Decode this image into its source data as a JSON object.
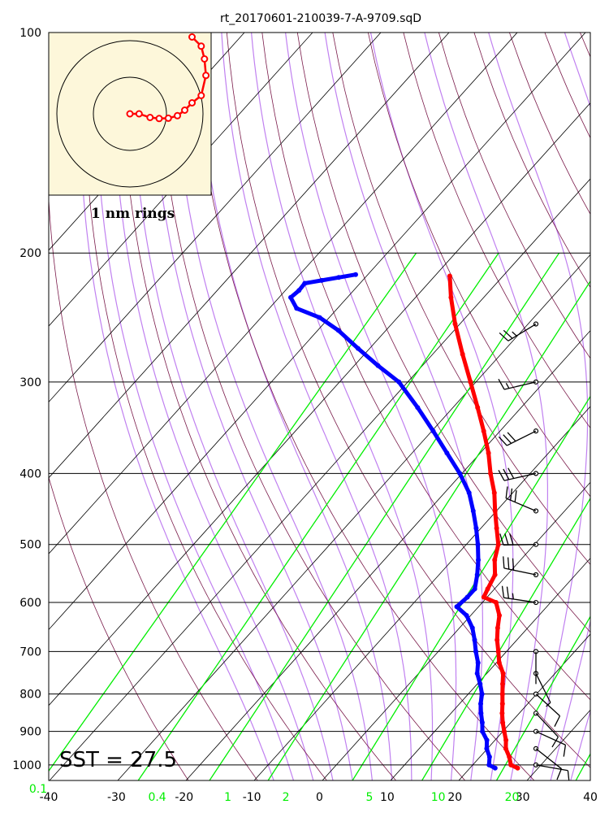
{
  "chart_data": {
    "type": "skew-t",
    "title": "rt_20170601-210039-7-A-9709.sqD",
    "pressure_ticks": [
      100,
      200,
      300,
      400,
      500,
      600,
      700,
      800,
      900,
      1000
    ],
    "temperature_ticks": [
      -40,
      -30,
      -20,
      -10,
      0,
      10,
      20,
      30,
      40
    ],
    "mixing_ratio_ticks": [
      "0.1",
      "0.4",
      "1",
      "2",
      "5",
      "10",
      "20"
    ],
    "mixing_ratio_values": [
      0.1,
      0.4,
      1,
      2,
      5,
      10,
      20
    ],
    "sst_label": "SST = 27.5",
    "hodograph_label": "1 nm rings",
    "colors": {
      "temperature": "#ff0000",
      "dewpoint": "#0000ff",
      "mixing_ratio": "#00ee00",
      "moist_adiabat": "#c080f0",
      "dry_adiabat": "#7a1a4a",
      "isotherm": "#000000",
      "hodograph_bg": "#fdf7da"
    },
    "temperature_profile": [
      {
        "p": 1010,
        "t": 27.0
      },
      {
        "p": 1000,
        "t": 25.6
      },
      {
        "p": 975,
        "t": 24.3
      },
      {
        "p": 950,
        "t": 22.7
      },
      {
        "p": 925,
        "t": 21.6
      },
      {
        "p": 900,
        "t": 20.2
      },
      {
        "p": 875,
        "t": 18.8
      },
      {
        "p": 850,
        "t": 17.5
      },
      {
        "p": 825,
        "t": 16.3
      },
      {
        "p": 800,
        "t": 15.0
      },
      {
        "p": 775,
        "t": 13.7
      },
      {
        "p": 750,
        "t": 12.4
      },
      {
        "p": 725,
        "t": 10.4
      },
      {
        "p": 700,
        "t": 8.8
      },
      {
        "p": 675,
        "t": 7.1
      },
      {
        "p": 650,
        "t": 5.6
      },
      {
        "p": 625,
        "t": 4.2
      },
      {
        "p": 600,
        "t": 2.0
      },
      {
        "p": 590,
        "t": -0.5
      },
      {
        "p": 575,
        "t": -1.0
      },
      {
        "p": 550,
        "t": -1.8
      },
      {
        "p": 525,
        "t": -3.8
      },
      {
        "p": 500,
        "t": -5.3
      },
      {
        "p": 475,
        "t": -7.7
      },
      {
        "p": 450,
        "t": -10.2
      },
      {
        "p": 425,
        "t": -12.7
      },
      {
        "p": 400,
        "t": -15.8
      },
      {
        "p": 375,
        "t": -18.8
      },
      {
        "p": 350,
        "t": -22.4
      },
      {
        "p": 325,
        "t": -26.4
      },
      {
        "p": 300,
        "t": -30.8
      },
      {
        "p": 275,
        "t": -35.6
      },
      {
        "p": 250,
        "t": -40.7
      },
      {
        "p": 230,
        "t": -44.8
      },
      {
        "p": 215,
        "t": -47.8
      }
    ],
    "dewpoint_profile": [
      {
        "p": 1010,
        "t": 23.7
      },
      {
        "p": 1000,
        "t": 22.4
      },
      {
        "p": 975,
        "t": 21.4
      },
      {
        "p": 950,
        "t": 19.9
      },
      {
        "p": 925,
        "t": 18.8
      },
      {
        "p": 900,
        "t": 17.0
      },
      {
        "p": 875,
        "t": 15.8
      },
      {
        "p": 850,
        "t": 14.4
      },
      {
        "p": 825,
        "t": 13.1
      },
      {
        "p": 800,
        "t": 12.0
      },
      {
        "p": 775,
        "t": 10.4
      },
      {
        "p": 750,
        "t": 8.6
      },
      {
        "p": 725,
        "t": 7.3
      },
      {
        "p": 700,
        "t": 5.5
      },
      {
        "p": 675,
        "t": 3.8
      },
      {
        "p": 650,
        "t": 1.9
      },
      {
        "p": 625,
        "t": -0.6
      },
      {
        "p": 608,
        "t": -3.2
      },
      {
        "p": 590,
        "t": -2.9
      },
      {
        "p": 575,
        "t": -2.9
      },
      {
        "p": 550,
        "t": -4.4
      },
      {
        "p": 525,
        "t": -6.2
      },
      {
        "p": 500,
        "t": -8.3
      },
      {
        "p": 475,
        "t": -10.7
      },
      {
        "p": 450,
        "t": -13.4
      },
      {
        "p": 425,
        "t": -16.4
      },
      {
        "p": 400,
        "t": -20.3
      },
      {
        "p": 375,
        "t": -24.9
      },
      {
        "p": 350,
        "t": -29.8
      },
      {
        "p": 325,
        "t": -35.2
      },
      {
        "p": 300,
        "t": -41.3
      },
      {
        "p": 285,
        "t": -46.5
      },
      {
        "p": 270,
        "t": -51.7
      },
      {
        "p": 255,
        "t": -57.0
      },
      {
        "p": 245,
        "t": -61.4
      },
      {
        "p": 238,
        "t": -66.0
      },
      {
        "p": 230,
        "t": -68.3
      },
      {
        "p": 225,
        "t": -68.0
      },
      {
        "p": 220,
        "t": -68.1
      },
      {
        "p": 218,
        "t": -66.0
      },
      {
        "p": 216,
        "t": -63.9
      },
      {
        "p": 214,
        "t": -61.8
      }
    ],
    "wind_profile": [
      {
        "p": 1000,
        "u": -11.5,
        "v": 2.0
      },
      {
        "p": 950,
        "u": -7.0,
        "v": 5.5
      },
      {
        "p": 900,
        "u": -11.0,
        "v": 5.0
      },
      {
        "p": 850,
        "u": -8.0,
        "v": 8.5
      },
      {
        "p": 800,
        "u": -6.0,
        "v": 5.5
      },
      {
        "p": 750,
        "u": -2.0,
        "v": 4.0
      },
      {
        "p": 700,
        "u": 0.0,
        "v": 2.0
      },
      {
        "p": 600,
        "u": 27.0,
        "v": -4.0
      },
      {
        "p": 550,
        "u": 29.0,
        "v": -6.0
      },
      {
        "p": 500,
        "u": 29.5,
        "v": 0.5
      },
      {
        "p": 450,
        "u": 26.0,
        "v": -11.0
      },
      {
        "p": 400,
        "u": 27.0,
        "v": 6.0
      },
      {
        "p": 350,
        "u": 26.0,
        "v": 13.0
      },
      {
        "p": 300,
        "u": 17.0,
        "v": 4.0
      },
      {
        "p": 250,
        "u": 23.0,
        "v": 14.0
      }
    ],
    "hodograph": {
      "ring_radii_nm": [
        1,
        2
      ],
      "points": [
        {
          "x": 0.0,
          "y": 0.0
        },
        {
          "x": 0.25,
          "y": 0.0
        },
        {
          "x": 0.55,
          "y": -0.1
        },
        {
          "x": 0.8,
          "y": -0.13
        },
        {
          "x": 1.05,
          "y": -0.12
        },
        {
          "x": 1.3,
          "y": -0.05
        },
        {
          "x": 1.5,
          "y": 0.1
        },
        {
          "x": 1.7,
          "y": 0.3
        },
        {
          "x": 1.95,
          "y": 0.5
        },
        {
          "x": 2.08,
          "y": 1.05
        },
        {
          "x": 2.04,
          "y": 1.5
        },
        {
          "x": 1.95,
          "y": 1.85
        },
        {
          "x": 1.7,
          "y": 2.1
        }
      ]
    }
  }
}
